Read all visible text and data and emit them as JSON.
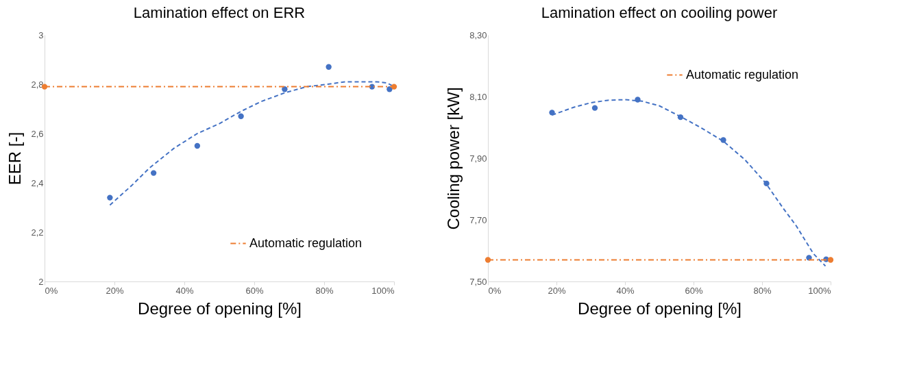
{
  "chart_data": [
    {
      "type": "scatter",
      "title": "Lamination effect on ERR",
      "xlabel": "Degree of opening [%]",
      "ylabel": "EER [-]",
      "xlim": [
        0,
        100
      ],
      "ylim": [
        2,
        3
      ],
      "xticks": [
        {
          "value": 0,
          "label": "0%"
        },
        {
          "value": 20,
          "label": "20%"
        },
        {
          "value": 40,
          "label": "40%"
        },
        {
          "value": 60,
          "label": "60%"
        },
        {
          "value": 80,
          "label": "80%"
        },
        {
          "value": 100,
          "label": "100%"
        }
      ],
      "yticks": [
        2,
        {
          "value": 2.2,
          "label": "2,2"
        },
        {
          "value": 2.4,
          "label": "2,4"
        },
        {
          "value": 2.6,
          "label": "2,6"
        },
        {
          "value": 2.8,
          "label": "2,8"
        },
        3
      ],
      "grid": false,
      "legend": "bottom",
      "series": [
        {
          "color": "#4472c4",
          "marker": "circle",
          "x": [
            18.7,
            31.2,
            43.7,
            56.2,
            68.7,
            81.3,
            93.7,
            98.7
          ],
          "values": [
            2.34,
            2.44,
            2.55,
            2.67,
            2.78,
            2.87,
            2.79,
            2.78
          ]
        },
        {
          "type": "line",
          "color": "#4472c4",
          "marker": "none",
          "line_style": "dashed",
          "x": [
            18.7,
            25,
            30,
            37,
            43.7,
            50,
            56.2,
            62,
            68.7,
            75,
            81,
            86,
            90,
            95,
            98,
            100
          ],
          "values": [
            2.31,
            2.39,
            2.46,
            2.54,
            2.6,
            2.64,
            2.69,
            2.73,
            2.765,
            2.79,
            2.8,
            2.81,
            2.81,
            2.81,
            2.805,
            2.79
          ]
        },
        {
          "type": "line",
          "name": "Automatic regulation",
          "color": "#ed7d31",
          "marker": "circle",
          "line_style": "dashdot",
          "x": [
            0,
            100
          ],
          "values": [
            2.79,
            2.79
          ]
        }
      ]
    },
    {
      "type": "scatter",
      "title": "Lamination effect on cooiling power",
      "xlabel": "Degree of opening [%]",
      "ylabel": "Cooling power [kW]",
      "xlim": [
        0,
        100
      ],
      "ylim": [
        7.5,
        8.3
      ],
      "xticks": [
        {
          "value": 0,
          "label": "0%"
        },
        {
          "value": 20,
          "label": "20%"
        },
        {
          "value": 40,
          "label": "40%"
        },
        {
          "value": 60,
          "label": "60%"
        },
        {
          "value": 80,
          "label": "80%"
        },
        {
          "value": 100,
          "label": "100%"
        }
      ],
      "yticks": [
        {
          "value": 7.5,
          "label": "7,50"
        },
        {
          "value": 7.7,
          "label": "7,70"
        },
        {
          "value": 7.9,
          "label": "7,90"
        },
        {
          "value": 8.1,
          "label": "8,10"
        },
        {
          "value": 8.3,
          "label": "8,30"
        }
      ],
      "grid": false,
      "legend": "top right",
      "series": [
        {
          "color": "#4472c4",
          "marker": "circle",
          "x": [
            18.7,
            31.2,
            43.7,
            56.2,
            68.7,
            81.3,
            93.7,
            98.7
          ],
          "values": [
            8.048,
            8.063,
            8.09,
            8.033,
            7.959,
            7.818,
            7.577,
            7.572
          ]
        },
        {
          "type": "line",
          "color": "#4472c4",
          "marker": "none",
          "line_style": "dashed",
          "x": [
            18.7,
            25,
            30,
            35,
            40,
            45,
            50,
            56.2,
            62,
            68.7,
            75,
            81,
            86,
            90,
            95,
            98.5
          ],
          "values": [
            8.04,
            8.065,
            8.08,
            8.088,
            8.09,
            8.085,
            8.07,
            8.035,
            8.0,
            7.955,
            7.895,
            7.82,
            7.74,
            7.68,
            7.59,
            7.55
          ]
        },
        {
          "type": "line",
          "name": "Automatic regulation",
          "color": "#ed7d31",
          "marker": "circle",
          "line_style": "dashdot",
          "x": [
            0,
            100
          ],
          "values": [
            7.57,
            7.57
          ]
        }
      ]
    }
  ]
}
